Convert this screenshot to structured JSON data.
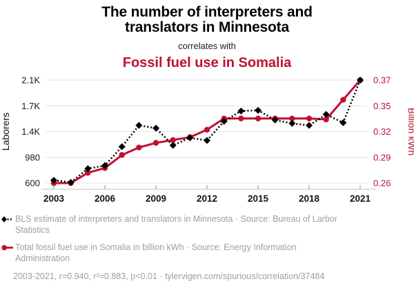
{
  "title": {
    "black_title": "The number of interpreters and translators in Minnesota",
    "connector": "correlates with",
    "red_title": "Fossil fuel use in Somalia"
  },
  "chart_data": {
    "type": "line",
    "title": "The number of interpreters and translators in Minnesota correlates with Fossil fuel use in Somalia",
    "x": [
      2003,
      2004,
      2005,
      2006,
      2007,
      2008,
      2009,
      2010,
      2011,
      2012,
      2013,
      2014,
      2015,
      2016,
      2017,
      2018,
      2019,
      2020,
      2021
    ],
    "x_tick_labels": [
      "2003",
      "2006",
      "2009",
      "2012",
      "2015",
      "2018",
      "2021"
    ],
    "x_tick_years": [
      2003,
      2006,
      2009,
      2012,
      2015,
      2018,
      2021
    ],
    "series": [
      {
        "name": "BLS estimate of interpreters and translators in Minnesota",
        "axis": "left",
        "line_style": "dotted",
        "marker": "diamond",
        "color": "#000000",
        "values": [
          640,
          610,
          810,
          855,
          1130,
          1440,
          1400,
          1150,
          1260,
          1220,
          1500,
          1650,
          1660,
          1520,
          1470,
          1440,
          1600,
          1480,
          2100
        ]
      },
      {
        "name": "Total fossil fuel use in Somalia in billion kWh",
        "axis": "right",
        "line_style": "solid",
        "marker": "circle",
        "color": "#bf1231",
        "values": [
          0.26,
          0.26,
          0.271,
          0.276,
          0.29,
          0.298,
          0.303,
          0.306,
          0.309,
          0.317,
          0.329,
          0.329,
          0.329,
          0.329,
          0.329,
          0.329,
          0.328,
          0.349,
          0.37
        ]
      }
    ],
    "left_axis": {
      "label": "Laborers",
      "tick_labels": [
        "2.1K",
        "1.7K",
        "1.4K",
        "980",
        "600"
      ],
      "range": [
        600,
        2100
      ]
    },
    "right_axis": {
      "label": "Billion kWh",
      "tick_labels": [
        "0.37",
        "0.35",
        "0.32",
        "0.29",
        "0.26"
      ],
      "range": [
        0.26,
        0.37
      ]
    },
    "grid": "horizontal",
    "legend_position": "bottom"
  },
  "legend": {
    "items": [
      {
        "marker": "black-diamond-dotted",
        "text": "BLS estimate of interpreters and translators in Minnesota · Source: Bureau of Larbor Statistics"
      },
      {
        "marker": "red-circle-solid",
        "text": "Total fossil fuel use in Somalia in billion kWh · Source: Energy Information Administration"
      }
    ]
  },
  "footer": "2003-2021, r=0.940, r²=0.883, p<0.01 · tylervigen.com/spurious/correlation/37484",
  "colors": {
    "red": "#bf1231",
    "black": "#000000",
    "grid": "#e4e4e4",
    "axis_line": "#cdcdcd",
    "tick_mark": "#a6a6a6",
    "tick_label": "#1a1a1a",
    "legend_text": "#9e9e9e"
  }
}
